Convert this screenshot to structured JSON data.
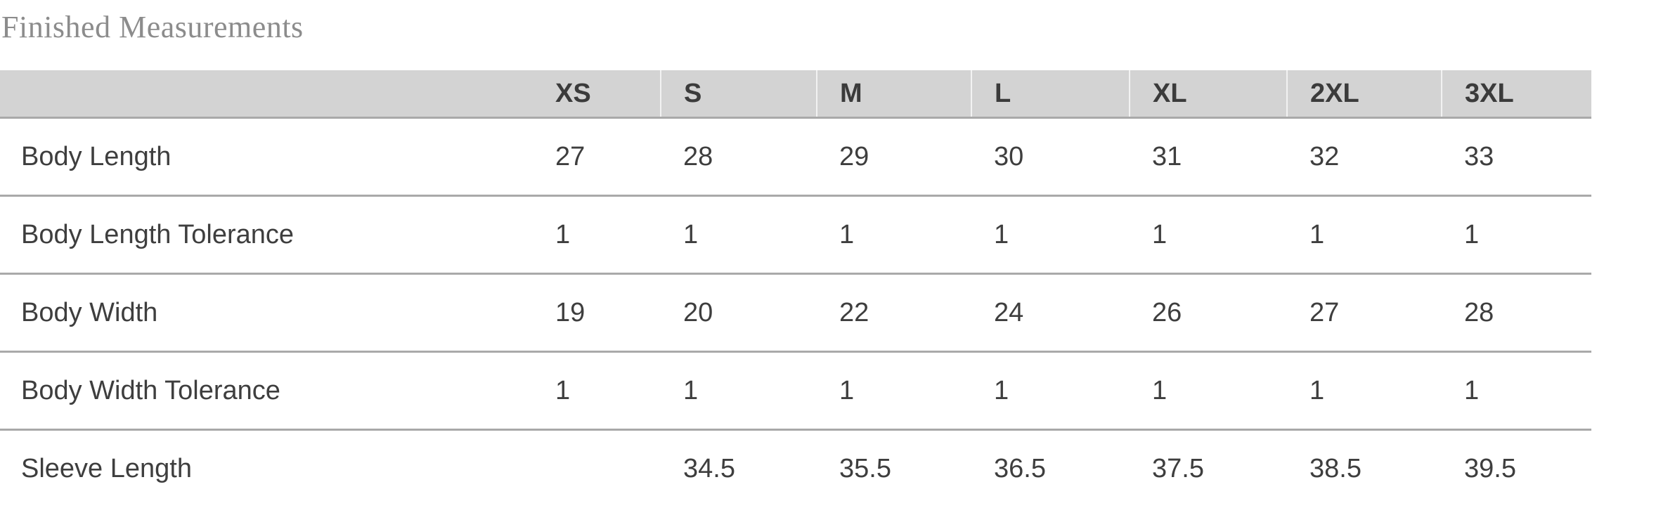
{
  "section": {
    "title": "Finished Measurements"
  },
  "table": {
    "size_headers": [
      "XS",
      "S",
      "M",
      "L",
      "XL",
      "2XL",
      "3XL"
    ],
    "rows": [
      {
        "label": "Body Length",
        "values": [
          "27",
          "28",
          "29",
          "30",
          "31",
          "32",
          "33"
        ]
      },
      {
        "label": "Body Length Tolerance",
        "values": [
          "1",
          "1",
          "1",
          "1",
          "1",
          "1",
          "1"
        ]
      },
      {
        "label": "Body Width",
        "values": [
          "19",
          "20",
          "22",
          "24",
          "26",
          "27",
          "28"
        ]
      },
      {
        "label": "Body Width Tolerance",
        "values": [
          "1",
          "1",
          "1",
          "1",
          "1",
          "1",
          "1"
        ]
      },
      {
        "label": "Sleeve Length",
        "values": [
          "",
          "34.5",
          "35.5",
          "36.5",
          "37.5",
          "38.5",
          "39.5"
        ]
      }
    ]
  },
  "colors": {
    "header_background": "#d3d3d3",
    "header_text": "#3b3b3b",
    "body_text": "#3e3e3e",
    "title_text": "#8c8c8c",
    "row_divider": "#a9a9a9",
    "header_cell_separator": "#f2f2f2"
  }
}
